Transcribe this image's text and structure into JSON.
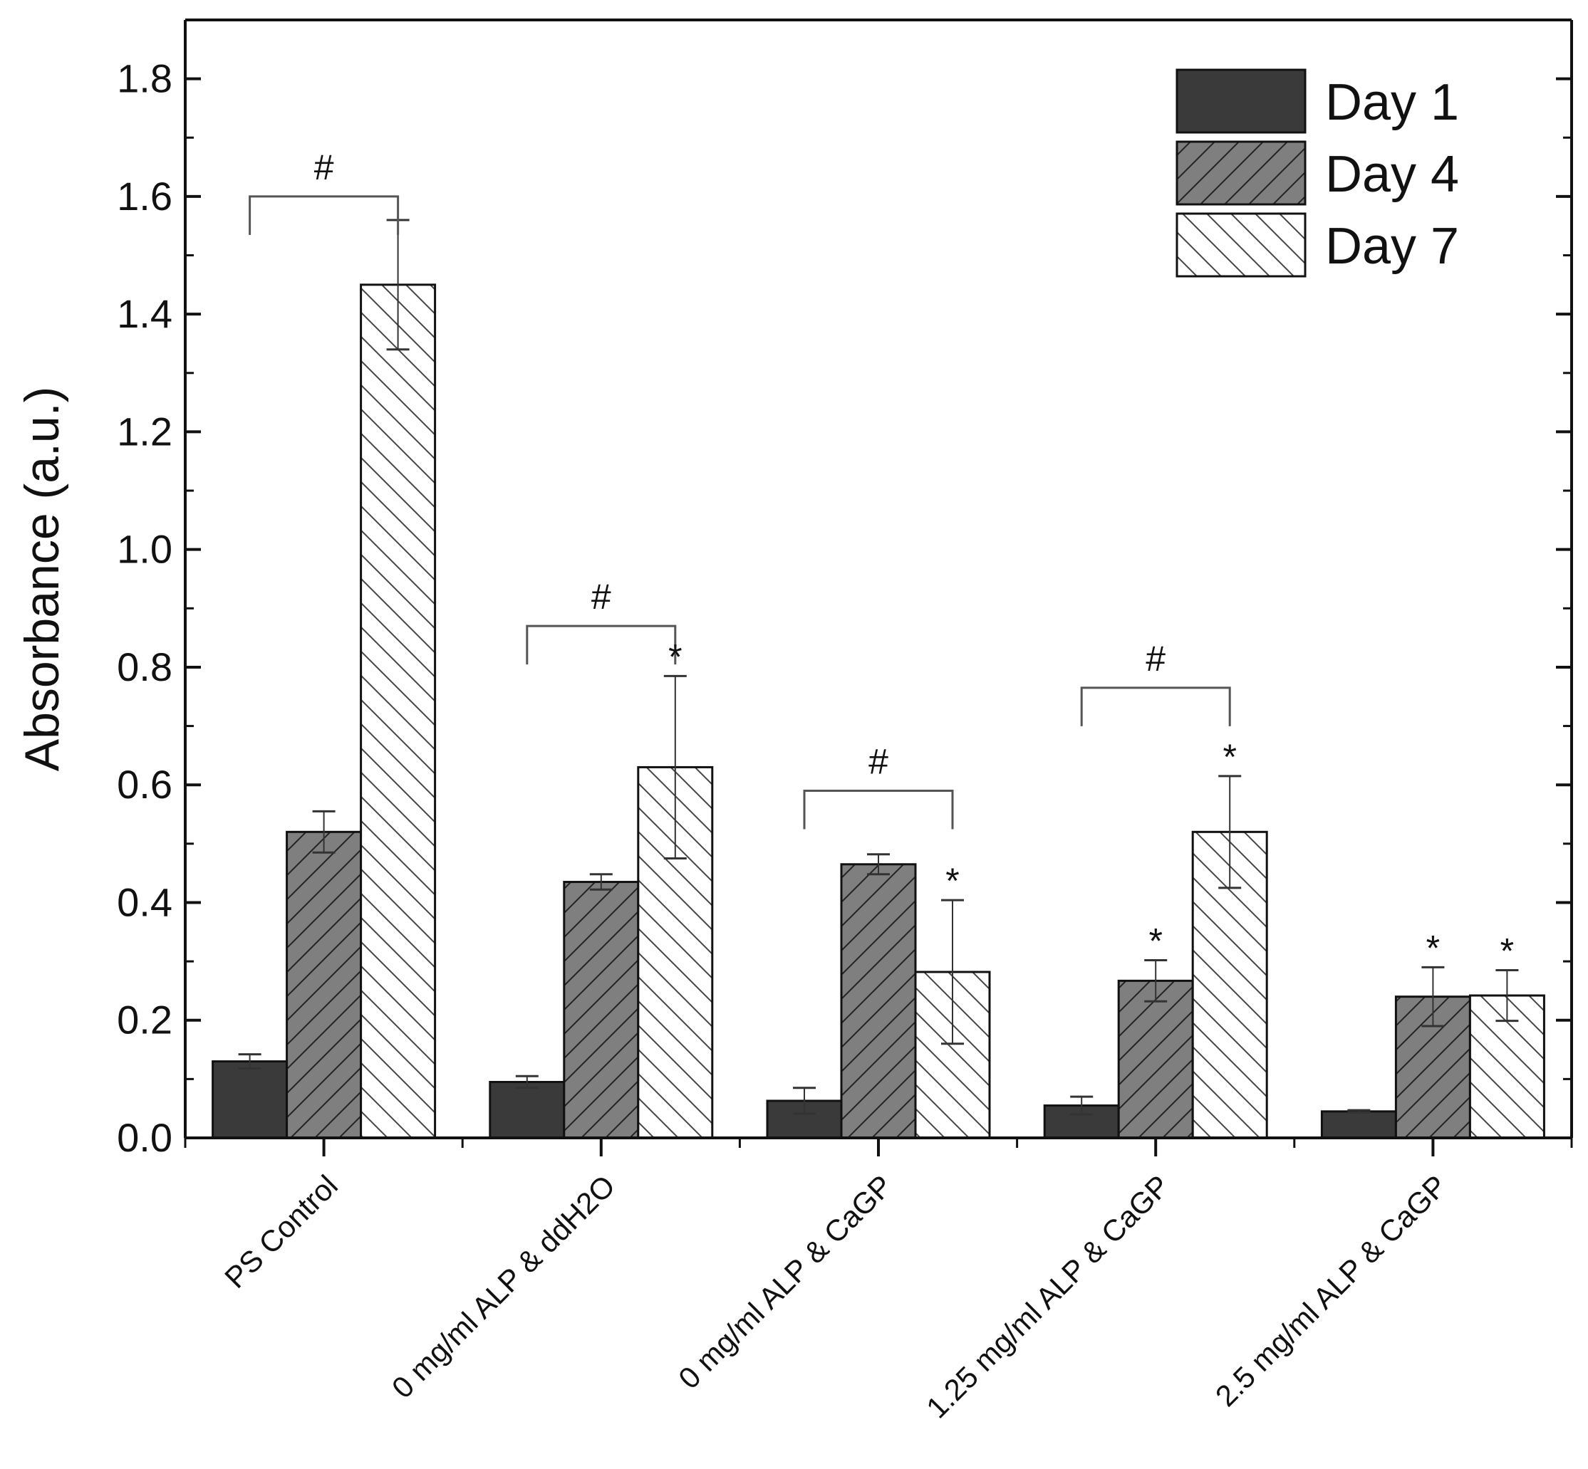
{
  "chart_data": {
    "type": "bar",
    "title": "",
    "xlabel": "",
    "ylabel": "Absorbance (a.u.)",
    "ylim": [
      0,
      1.9
    ],
    "yticks": [
      0.0,
      0.2,
      0.4,
      0.6,
      0.8,
      1.0,
      1.2,
      1.4,
      1.6,
      1.8
    ],
    "ytick_labels": [
      "0.0",
      "0.2",
      "0.4",
      "0.6",
      "0.8",
      "1.0",
      "1.2",
      "1.4",
      "1.6",
      "1.8"
    ],
    "legend_position": "top-right",
    "categories": [
      "PS Control",
      "0 mg/ml ALP & ddH2O",
      "0 mg/ml ALP & CaGP",
      "1.25 mg/ml ALP & CaGP",
      "2.5 mg/ml ALP & CaGP"
    ],
    "series": [
      {
        "name": "Day 1",
        "pattern": "solid",
        "values": [
          0.13,
          0.095,
          0.063,
          0.055,
          0.045
        ],
        "errors": [
          0.012,
          0.01,
          0.022,
          0.015,
          0.002
        ]
      },
      {
        "name": "Day 4",
        "pattern": "hatch-forward",
        "values": [
          0.52,
          0.435,
          0.465,
          0.267,
          0.24
        ],
        "errors": [
          0.035,
          0.013,
          0.017,
          0.035,
          0.05
        ]
      },
      {
        "name": "Day 7",
        "pattern": "hatch-backward",
        "values": [
          1.45,
          0.63,
          0.282,
          0.52,
          0.242
        ],
        "errors": [
          0.11,
          0.155,
          0.122,
          0.095,
          0.043
        ]
      }
    ],
    "brackets": [
      {
        "category_index": 0,
        "from_series": 0,
        "to_series": 2,
        "label": "#",
        "level": 1.6
      },
      {
        "category_index": 1,
        "from_series": 0,
        "to_series": 2,
        "label": "#",
        "level": 0.87
      },
      {
        "category_index": 2,
        "from_series": 0,
        "to_series": 2,
        "label": "#",
        "level": 0.59
      },
      {
        "category_index": 3,
        "from_series": 0,
        "to_series": 2,
        "label": "#",
        "level": 0.765
      }
    ],
    "stars": [
      {
        "category_index": 1,
        "series_index": 2,
        "label": "*"
      },
      {
        "category_index": 2,
        "series_index": 2,
        "label": "*"
      },
      {
        "category_index": 3,
        "series_index": 1,
        "label": "*"
      },
      {
        "category_index": 3,
        "series_index": 2,
        "label": "*"
      },
      {
        "category_index": 4,
        "series_index": 1,
        "label": "*"
      },
      {
        "category_index": 4,
        "series_index": 2,
        "label": "*"
      }
    ],
    "colors": {
      "day1_fill": "#3a3a3a",
      "day4_fill": "#7f7f7f",
      "day7_fill": "#ffffff",
      "stroke": "#111111",
      "hatch_dark": "#222222",
      "hatch_light": "#444444"
    }
  }
}
